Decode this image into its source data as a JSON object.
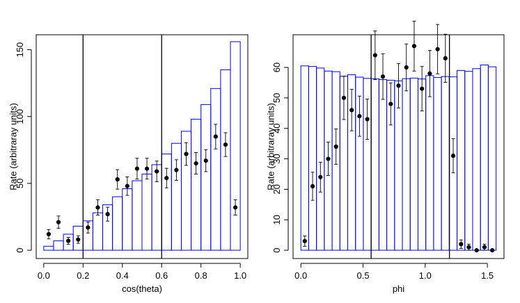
{
  "colors": {
    "hist": "#0000ff",
    "points": "#000000",
    "vline": "#000000",
    "axis": "#000000"
  },
  "chart_data": [
    {
      "type": "bar",
      "style": "histogram-step with points and error bars",
      "xlabel": "cos(theta)",
      "ylabel": "Rate (arbitraray units)",
      "xlim": [
        0,
        1
      ],
      "ylim": [
        0,
        155
      ],
      "xticks": [
        0.0,
        0.2,
        0.4,
        0.6,
        0.8,
        1.0
      ],
      "xtick_labels": [
        "0.0",
        "0.2",
        "0.4",
        "0.6",
        "0.8",
        "1.0"
      ],
      "yticks": [
        0,
        50,
        100,
        150
      ],
      "ytick_labels": [
        "0",
        "50",
        "100",
        "150"
      ],
      "hist_bin_width": 0.05,
      "hist_values": [
        3,
        7,
        12,
        18,
        22,
        28,
        34,
        40,
        46,
        52,
        57,
        64,
        72,
        80,
        89,
        98,
        109,
        121,
        135,
        156
      ],
      "points_x": [
        0.025,
        0.075,
        0.125,
        0.175,
        0.225,
        0.275,
        0.325,
        0.375,
        0.425,
        0.475,
        0.525,
        0.575,
        0.625,
        0.675,
        0.725,
        0.775,
        0.825,
        0.875,
        0.925,
        0.975
      ],
      "points_y": [
        12,
        21,
        7,
        8,
        17,
        32,
        27,
        53,
        48,
        61,
        61,
        59,
        54,
        60,
        72,
        65,
        67,
        85,
        79,
        32
      ],
      "errors": [
        3.5,
        4.6,
        2.6,
        2.8,
        4.1,
        5.7,
        5.2,
        7.3,
        6.9,
        7.8,
        7.8,
        7.7,
        7.3,
        7.7,
        8.5,
        8.1,
        8.2,
        9.2,
        8.9,
        5.7
      ],
      "vlines": [
        0.2,
        0.6
      ]
    },
    {
      "type": "bar",
      "style": "histogram-step with points and error bars",
      "xlabel": "phi",
      "ylabel": "Rate (arbitraray units)",
      "xlim": [
        0,
        1.5708
      ],
      "ylim": [
        0,
        68
      ],
      "xticks": [
        0.0,
        0.5,
        1.0,
        1.5
      ],
      "xtick_labels": [
        "0.0",
        "0.5",
        "1.0",
        "1.5"
      ],
      "yticks": [
        0,
        10,
        20,
        30,
        40,
        50,
        60
      ],
      "ytick_labels": [
        "0",
        "10",
        "20",
        "30",
        "40",
        "50",
        "60"
      ],
      "hist_bin_width": 0.0628,
      "hist_values": [
        60.5,
        60.3,
        59.8,
        58.8,
        58.6,
        57.1,
        57.6,
        56.8,
        56.4,
        56.3,
        56.0,
        55.8,
        55.6,
        56.3,
        56.5,
        56.2,
        57.3,
        56.7,
        57.0,
        56.9,
        59.0,
        58.7,
        59.6,
        60.8,
        60.2
      ],
      "points_x": [
        0.0314,
        0.0942,
        0.157,
        0.2199,
        0.2827,
        0.3456,
        0.4084,
        0.4712,
        0.5341,
        0.5969,
        0.6597,
        0.7226,
        0.7854,
        0.8482,
        0.9111,
        0.9739,
        1.0367,
        1.0996,
        1.1624,
        1.2252,
        1.2881,
        1.3509,
        1.4137,
        1.4765,
        1.5394
      ],
      "points_y": [
        3,
        21,
        24,
        30,
        34,
        50,
        46,
        44,
        43,
        64,
        57,
        48,
        54,
        60,
        67,
        53,
        58,
        66,
        63,
        31,
        2,
        1,
        0,
        1,
        0
      ],
      "errors": [
        1.7,
        4.6,
        4.9,
        5.5,
        5.8,
        7.1,
        6.8,
        6.6,
        6.6,
        8.0,
        7.5,
        6.9,
        7.3,
        7.7,
        8.2,
        7.3,
        7.6,
        8.1,
        7.9,
        5.6,
        1.4,
        1.0,
        0,
        1.0,
        0
      ],
      "vlines": [
        0.565,
        1.195
      ]
    }
  ]
}
